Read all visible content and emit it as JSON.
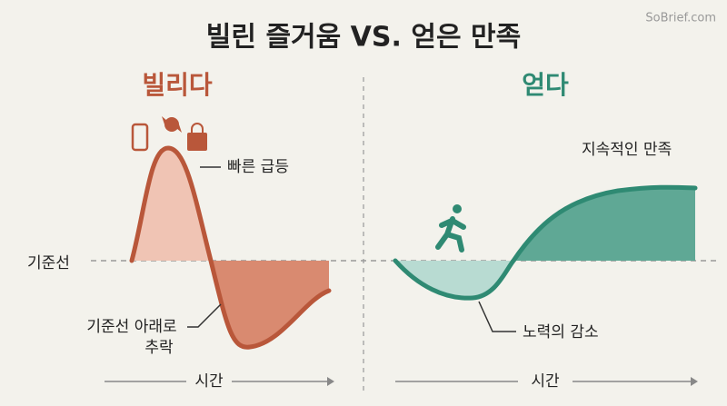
{
  "header": {
    "title": "빌린 즐거움 VS. 얻은 만족",
    "watermark": "SoBrief.com"
  },
  "left": {
    "heading": "빌리다",
    "peak_label": "빠른 급등",
    "drop_label": [
      "기준선 아래로",
      "추락"
    ],
    "axis_label": "시간"
  },
  "baseline_label": "기준선",
  "right": {
    "heading": "얻다",
    "rise_label": "지속적인 만족",
    "dip_label": "노력의 감소",
    "axis_label": "시간"
  }
}
